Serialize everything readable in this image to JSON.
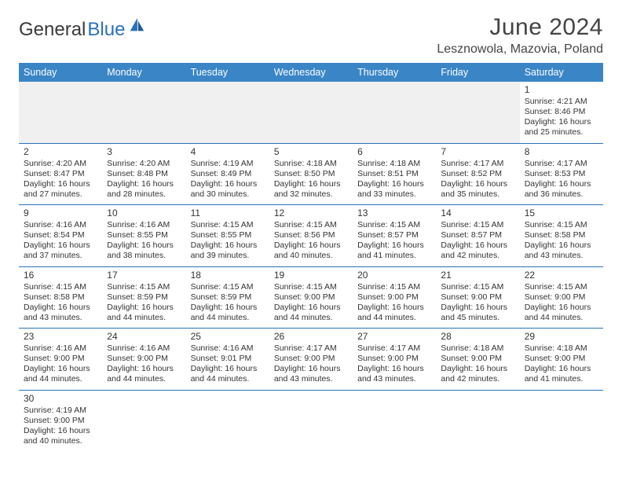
{
  "brand": {
    "part1": "General",
    "part2": "Blue"
  },
  "title": "June 2024",
  "location": "Lesznowola, Mazovia, Poland",
  "colors": {
    "header_bg": "#3a85c6",
    "header_text": "#ffffff",
    "border": "#2a71b8",
    "brand_accent": "#2a71b8",
    "text": "#333333",
    "empty_bg": "#f0f0f0"
  },
  "typography": {
    "title_fontsize": 30,
    "location_fontsize": 16,
    "dayhead_fontsize": 12.5,
    "cell_fontsize": 10.5
  },
  "day_headers": [
    "Sunday",
    "Monday",
    "Tuesday",
    "Wednesday",
    "Thursday",
    "Friday",
    "Saturday"
  ],
  "weeks": [
    [
      null,
      null,
      null,
      null,
      null,
      null,
      {
        "n": "1",
        "sr": "Sunrise: 4:21 AM",
        "ss": "Sunset: 8:46 PM",
        "d1": "Daylight: 16 hours",
        "d2": "and 25 minutes."
      }
    ],
    [
      {
        "n": "2",
        "sr": "Sunrise: 4:20 AM",
        "ss": "Sunset: 8:47 PM",
        "d1": "Daylight: 16 hours",
        "d2": "and 27 minutes."
      },
      {
        "n": "3",
        "sr": "Sunrise: 4:20 AM",
        "ss": "Sunset: 8:48 PM",
        "d1": "Daylight: 16 hours",
        "d2": "and 28 minutes."
      },
      {
        "n": "4",
        "sr": "Sunrise: 4:19 AM",
        "ss": "Sunset: 8:49 PM",
        "d1": "Daylight: 16 hours",
        "d2": "and 30 minutes."
      },
      {
        "n": "5",
        "sr": "Sunrise: 4:18 AM",
        "ss": "Sunset: 8:50 PM",
        "d1": "Daylight: 16 hours",
        "d2": "and 32 minutes."
      },
      {
        "n": "6",
        "sr": "Sunrise: 4:18 AM",
        "ss": "Sunset: 8:51 PM",
        "d1": "Daylight: 16 hours",
        "d2": "and 33 minutes."
      },
      {
        "n": "7",
        "sr": "Sunrise: 4:17 AM",
        "ss": "Sunset: 8:52 PM",
        "d1": "Daylight: 16 hours",
        "d2": "and 35 minutes."
      },
      {
        "n": "8",
        "sr": "Sunrise: 4:17 AM",
        "ss": "Sunset: 8:53 PM",
        "d1": "Daylight: 16 hours",
        "d2": "and 36 minutes."
      }
    ],
    [
      {
        "n": "9",
        "sr": "Sunrise: 4:16 AM",
        "ss": "Sunset: 8:54 PM",
        "d1": "Daylight: 16 hours",
        "d2": "and 37 minutes."
      },
      {
        "n": "10",
        "sr": "Sunrise: 4:16 AM",
        "ss": "Sunset: 8:55 PM",
        "d1": "Daylight: 16 hours",
        "d2": "and 38 minutes."
      },
      {
        "n": "11",
        "sr": "Sunrise: 4:15 AM",
        "ss": "Sunset: 8:55 PM",
        "d1": "Daylight: 16 hours",
        "d2": "and 39 minutes."
      },
      {
        "n": "12",
        "sr": "Sunrise: 4:15 AM",
        "ss": "Sunset: 8:56 PM",
        "d1": "Daylight: 16 hours",
        "d2": "and 40 minutes."
      },
      {
        "n": "13",
        "sr": "Sunrise: 4:15 AM",
        "ss": "Sunset: 8:57 PM",
        "d1": "Daylight: 16 hours",
        "d2": "and 41 minutes."
      },
      {
        "n": "14",
        "sr": "Sunrise: 4:15 AM",
        "ss": "Sunset: 8:57 PM",
        "d1": "Daylight: 16 hours",
        "d2": "and 42 minutes."
      },
      {
        "n": "15",
        "sr": "Sunrise: 4:15 AM",
        "ss": "Sunset: 8:58 PM",
        "d1": "Daylight: 16 hours",
        "d2": "and 43 minutes."
      }
    ],
    [
      {
        "n": "16",
        "sr": "Sunrise: 4:15 AM",
        "ss": "Sunset: 8:58 PM",
        "d1": "Daylight: 16 hours",
        "d2": "and 43 minutes."
      },
      {
        "n": "17",
        "sr": "Sunrise: 4:15 AM",
        "ss": "Sunset: 8:59 PM",
        "d1": "Daylight: 16 hours",
        "d2": "and 44 minutes."
      },
      {
        "n": "18",
        "sr": "Sunrise: 4:15 AM",
        "ss": "Sunset: 8:59 PM",
        "d1": "Daylight: 16 hours",
        "d2": "and 44 minutes."
      },
      {
        "n": "19",
        "sr": "Sunrise: 4:15 AM",
        "ss": "Sunset: 9:00 PM",
        "d1": "Daylight: 16 hours",
        "d2": "and 44 minutes."
      },
      {
        "n": "20",
        "sr": "Sunrise: 4:15 AM",
        "ss": "Sunset: 9:00 PM",
        "d1": "Daylight: 16 hours",
        "d2": "and 44 minutes."
      },
      {
        "n": "21",
        "sr": "Sunrise: 4:15 AM",
        "ss": "Sunset: 9:00 PM",
        "d1": "Daylight: 16 hours",
        "d2": "and 45 minutes."
      },
      {
        "n": "22",
        "sr": "Sunrise: 4:15 AM",
        "ss": "Sunset: 9:00 PM",
        "d1": "Daylight: 16 hours",
        "d2": "and 44 minutes."
      }
    ],
    [
      {
        "n": "23",
        "sr": "Sunrise: 4:16 AM",
        "ss": "Sunset: 9:00 PM",
        "d1": "Daylight: 16 hours",
        "d2": "and 44 minutes."
      },
      {
        "n": "24",
        "sr": "Sunrise: 4:16 AM",
        "ss": "Sunset: 9:00 PM",
        "d1": "Daylight: 16 hours",
        "d2": "and 44 minutes."
      },
      {
        "n": "25",
        "sr": "Sunrise: 4:16 AM",
        "ss": "Sunset: 9:01 PM",
        "d1": "Daylight: 16 hours",
        "d2": "and 44 minutes."
      },
      {
        "n": "26",
        "sr": "Sunrise: 4:17 AM",
        "ss": "Sunset: 9:00 PM",
        "d1": "Daylight: 16 hours",
        "d2": "and 43 minutes."
      },
      {
        "n": "27",
        "sr": "Sunrise: 4:17 AM",
        "ss": "Sunset: 9:00 PM",
        "d1": "Daylight: 16 hours",
        "d2": "and 43 minutes."
      },
      {
        "n": "28",
        "sr": "Sunrise: 4:18 AM",
        "ss": "Sunset: 9:00 PM",
        "d1": "Daylight: 16 hours",
        "d2": "and 42 minutes."
      },
      {
        "n": "29",
        "sr": "Sunrise: 4:18 AM",
        "ss": "Sunset: 9:00 PM",
        "d1": "Daylight: 16 hours",
        "d2": "and 41 minutes."
      }
    ],
    [
      {
        "n": "30",
        "sr": "Sunrise: 4:19 AM",
        "ss": "Sunset: 9:00 PM",
        "d1": "Daylight: 16 hours",
        "d2": "and 40 minutes."
      },
      null,
      null,
      null,
      null,
      null,
      null
    ]
  ]
}
